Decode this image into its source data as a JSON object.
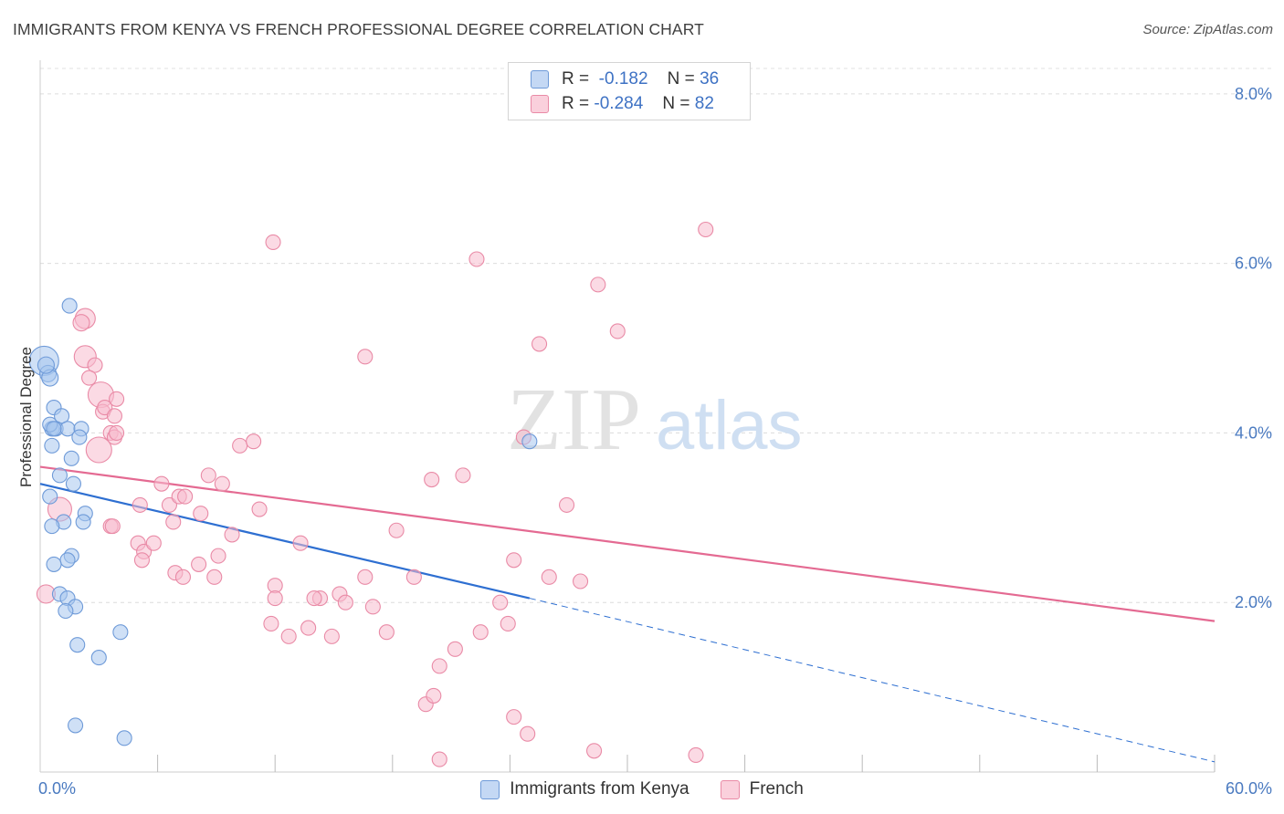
{
  "header": {
    "title": "IMMIGRANTS FROM KENYA VS FRENCH PROFESSIONAL DEGREE CORRELATION CHART",
    "source": "Source: ZipAtlas.com"
  },
  "watermark": {
    "zip": "ZIP",
    "atlas": "atlas"
  },
  "legend": {
    "rows": [
      {
        "r_label": "R =",
        "r_value": "-0.182",
        "n_label": "N =",
        "n_value": "36",
        "color": "#a8c6ef",
        "border": "#6e9ad8"
      },
      {
        "r_label": "R =",
        "r_value": "-0.284",
        "n_label": "N =",
        "n_value": "82",
        "color": "#f7bccd",
        "border": "#e98aa6"
      }
    ]
  },
  "chart_data": {
    "type": "scatter",
    "ylabel": "Professional Degree",
    "x_tick_labels": [
      "0.0%",
      "60.0%"
    ],
    "y_tick_labels": [
      "2.0%",
      "4.0%",
      "6.0%",
      "8.0%"
    ],
    "xlim": [
      0,
      60
    ],
    "ylim": [
      0,
      8.3
    ],
    "grid": true,
    "series": [
      {
        "name": "Immigrants from Kenya",
        "color": "#a8c6ef",
        "stroke": "#6e9ad8",
        "line_color": "#2e6fd1",
        "trend": {
          "x0": 0,
          "y0": 3.4,
          "x1": 25,
          "y1": 2.05,
          "dash_to_x": 60,
          "dash_to_y": 0.12
        },
        "points": [
          [
            0.2,
            4.85,
            16
          ],
          [
            0.4,
            4.7,
            9
          ],
          [
            0.5,
            4.65,
            9
          ],
          [
            1.5,
            5.5,
            8
          ],
          [
            0.7,
            4.3,
            8
          ],
          [
            1.1,
            4.2,
            8
          ],
          [
            0.6,
            4.05,
            8
          ],
          [
            0.8,
            4.05,
            8
          ],
          [
            1.4,
            4.05,
            8
          ],
          [
            2.1,
            4.05,
            8
          ],
          [
            2.0,
            3.95,
            8
          ],
          [
            0.6,
            3.85,
            8
          ],
          [
            1.6,
            3.7,
            8
          ],
          [
            1.0,
            3.5,
            8
          ],
          [
            1.7,
            3.4,
            8
          ],
          [
            0.5,
            3.25,
            8
          ],
          [
            2.3,
            3.05,
            8
          ],
          [
            1.2,
            2.95,
            8
          ],
          [
            2.2,
            2.95,
            8
          ],
          [
            0.6,
            2.9,
            8
          ],
          [
            1.6,
            2.55,
            8
          ],
          [
            1.4,
            2.5,
            8
          ],
          [
            0.7,
            2.45,
            8
          ],
          [
            1.0,
            2.1,
            8
          ],
          [
            1.4,
            2.05,
            8
          ],
          [
            1.8,
            1.95,
            8
          ],
          [
            1.3,
            1.9,
            8
          ],
          [
            4.1,
            1.65,
            8
          ],
          [
            1.9,
            1.5,
            8
          ],
          [
            3.0,
            1.35,
            8
          ],
          [
            1.8,
            0.55,
            8
          ],
          [
            4.3,
            0.4,
            8
          ],
          [
            0.5,
            4.1,
            8
          ],
          [
            0.7,
            4.05,
            8
          ],
          [
            25.0,
            3.9,
            8
          ],
          [
            0.3,
            4.8,
            9
          ]
        ]
      },
      {
        "name": "French",
        "color": "#f7bccd",
        "stroke": "#e98aa6",
        "line_color": "#e46a92",
        "trend": {
          "x0": 0,
          "y0": 3.6,
          "x1": 60,
          "y1": 1.78
        },
        "points": [
          [
            2.3,
            5.35,
            11
          ],
          [
            2.1,
            5.3,
            9
          ],
          [
            2.3,
            4.9,
            12
          ],
          [
            2.8,
            4.8,
            8
          ],
          [
            2.5,
            4.65,
            8
          ],
          [
            3.1,
            4.45,
            14
          ],
          [
            3.9,
            4.4,
            8
          ],
          [
            3.2,
            4.25,
            8
          ],
          [
            3.3,
            4.3,
            8
          ],
          [
            3.8,
            4.2,
            8
          ],
          [
            3.6,
            4.0,
            8
          ],
          [
            3.8,
            3.95,
            8
          ],
          [
            3.9,
            4.0,
            8
          ],
          [
            3.0,
            3.8,
            14
          ],
          [
            1.0,
            3.1,
            13
          ],
          [
            0.3,
            2.1,
            10
          ],
          [
            3.6,
            2.9,
            8
          ],
          [
            3.7,
            2.9,
            8
          ],
          [
            5.1,
            3.15,
            8
          ],
          [
            5.0,
            2.7,
            8
          ],
          [
            5.3,
            2.6,
            8
          ],
          [
            5.2,
            2.5,
            8
          ],
          [
            5.8,
            2.7,
            8
          ],
          [
            6.2,
            3.4,
            8
          ],
          [
            6.6,
            3.15,
            8
          ],
          [
            6.8,
            2.95,
            8
          ],
          [
            7.1,
            3.25,
            8
          ],
          [
            7.4,
            3.25,
            8
          ],
          [
            6.9,
            2.35,
            8
          ],
          [
            7.3,
            2.3,
            8
          ],
          [
            8.2,
            3.05,
            8
          ],
          [
            8.1,
            2.45,
            8
          ],
          [
            8.6,
            3.5,
            8
          ],
          [
            8.9,
            2.3,
            8
          ],
          [
            9.1,
            2.55,
            8
          ],
          [
            9.3,
            3.4,
            8
          ],
          [
            10.2,
            3.85,
            8
          ],
          [
            9.8,
            2.8,
            8
          ],
          [
            10.9,
            3.9,
            8
          ],
          [
            11.2,
            3.1,
            8
          ],
          [
            11.9,
            6.25,
            8
          ],
          [
            11.8,
            1.75,
            8
          ],
          [
            12.0,
            2.2,
            8
          ],
          [
            13.3,
            2.7,
            8
          ],
          [
            12.7,
            1.6,
            8
          ],
          [
            12.0,
            2.05,
            8
          ],
          [
            13.7,
            1.7,
            8
          ],
          [
            14.3,
            2.05,
            8
          ],
          [
            14.9,
            1.6,
            8
          ],
          [
            15.3,
            2.1,
            8
          ],
          [
            16.6,
            4.9,
            8
          ],
          [
            16.6,
            2.3,
            8
          ],
          [
            17.0,
            1.95,
            8
          ],
          [
            17.7,
            1.65,
            8
          ],
          [
            18.2,
            2.85,
            8
          ],
          [
            19.1,
            2.3,
            8
          ],
          [
            20.0,
            3.45,
            8
          ],
          [
            20.4,
            1.25,
            8
          ],
          [
            21.2,
            1.45,
            8
          ],
          [
            21.6,
            3.5,
            8
          ],
          [
            22.3,
            6.05,
            8
          ],
          [
            22.5,
            1.65,
            8
          ],
          [
            23.5,
            2.0,
            8
          ],
          [
            23.9,
            1.75,
            8
          ],
          [
            24.2,
            2.5,
            8
          ],
          [
            24.7,
            3.95,
            8
          ],
          [
            24.2,
            0.65,
            8
          ],
          [
            24.9,
            0.45,
            8
          ],
          [
            25.5,
            5.05,
            8
          ],
          [
            26.0,
            2.3,
            8
          ],
          [
            26.9,
            3.15,
            8
          ],
          [
            27.6,
            2.25,
            8
          ],
          [
            28.5,
            5.75,
            8
          ],
          [
            28.3,
            0.25,
            8
          ],
          [
            29.5,
            5.2,
            8
          ],
          [
            34.0,
            6.4,
            8
          ],
          [
            33.5,
            0.2,
            8
          ],
          [
            20.4,
            0.15,
            8
          ],
          [
            19.7,
            0.8,
            8
          ],
          [
            20.1,
            0.9,
            8
          ],
          [
            15.6,
            2.0,
            8
          ],
          [
            14.0,
            2.05,
            8
          ]
        ]
      }
    ]
  }
}
